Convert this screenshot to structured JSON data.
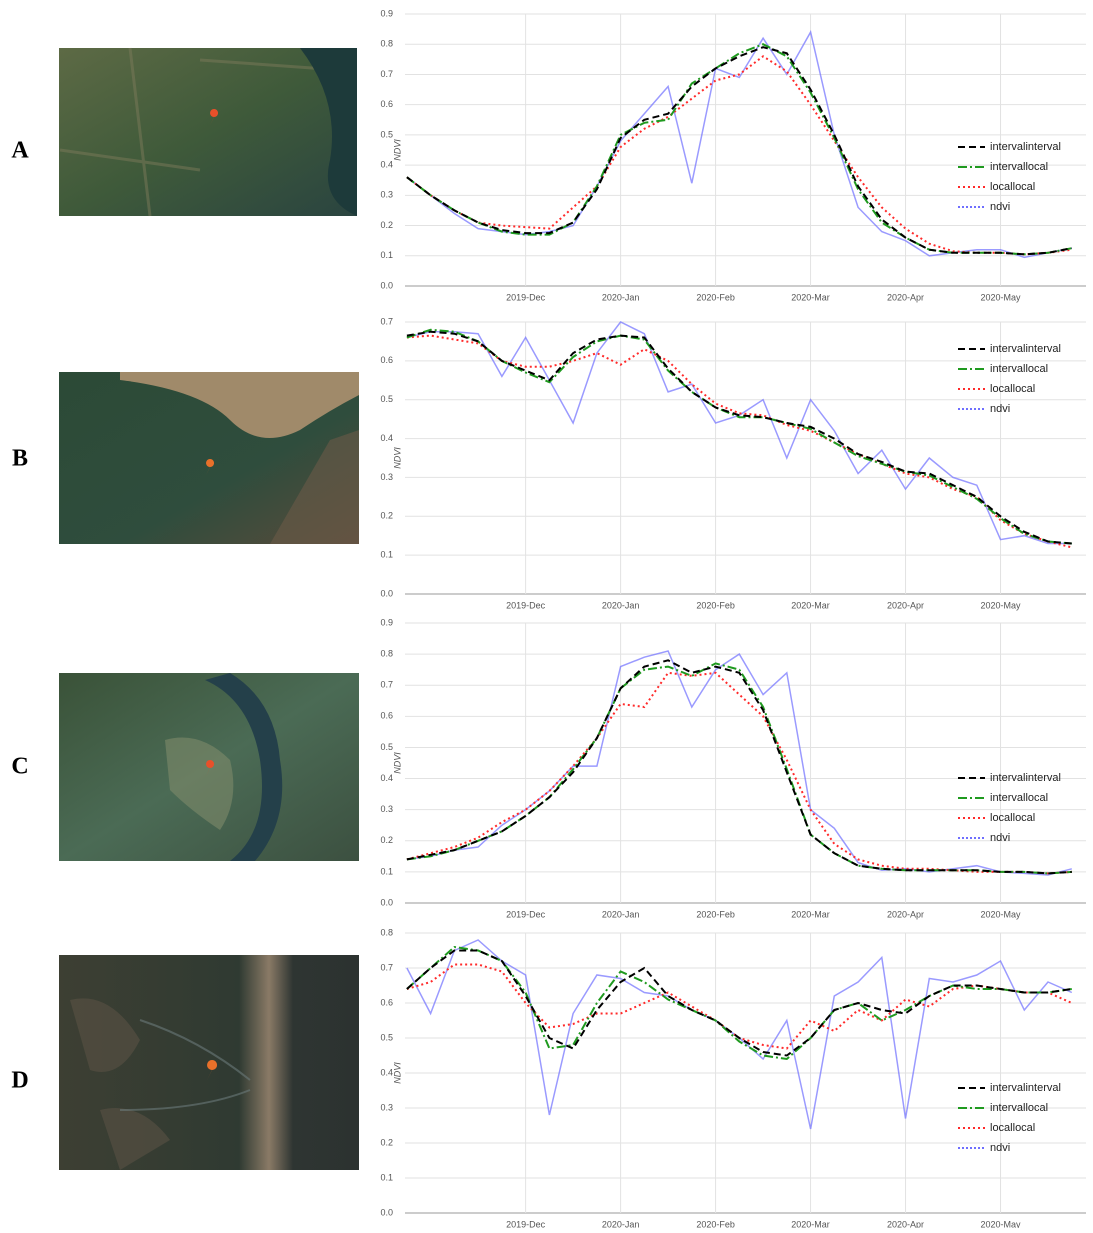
{
  "chart_data": [
    {
      "type": "line",
      "panel_label": "A",
      "y_label": "NDVI",
      "legend": "center right",
      "grid": true,
      "x": [
        -0.25,
        0,
        0.25,
        0.5,
        0.75,
        1,
        1.25,
        1.5,
        1.75,
        2,
        2.25,
        2.5,
        2.75,
        3,
        3.25,
        3.5,
        3.75,
        4,
        4.25,
        4.5,
        4.75,
        5,
        5.25,
        5.5,
        5.75,
        6,
        6.25,
        6.5,
        6.75
      ],
      "xlim": [
        -0.27,
        6.9
      ],
      "xticks": [
        {
          "value": 1,
          "label": "2019-Dec"
        },
        {
          "value": 2,
          "label": "2020-Jan"
        },
        {
          "value": 3,
          "label": "2020-Feb"
        },
        {
          "value": 4,
          "label": "2020-Mar"
        },
        {
          "value": 5,
          "label": "2020-Apr"
        },
        {
          "value": 6,
          "label": "2020-May"
        }
      ],
      "ylim": [
        0,
        0.9
      ],
      "yticks": [
        {
          "value": 0,
          "label": "0.0"
        },
        0.1,
        0.2,
        0.3,
        0.4,
        0.5,
        0.6,
        0.7,
        0.8,
        0.9
      ],
      "series": [
        {
          "name": "intervalinterval",
          "color": "#000000",
          "style": "dashed",
          "values": [
            0.36,
            0.3,
            0.25,
            0.21,
            0.185,
            0.175,
            0.175,
            0.21,
            0.32,
            0.49,
            0.55,
            0.57,
            0.66,
            0.72,
            0.76,
            0.79,
            0.77,
            0.65,
            0.5,
            0.33,
            0.22,
            0.16,
            0.12,
            0.11,
            0.11,
            0.11,
            0.105,
            0.11,
            0.125
          ]
        },
        {
          "name": "intervallocal",
          "color": "#1f9a1f",
          "style": "dashdot",
          "values": [
            0.36,
            0.3,
            0.25,
            0.21,
            0.18,
            0.17,
            0.17,
            0.21,
            0.33,
            0.5,
            0.54,
            0.55,
            0.67,
            0.72,
            0.77,
            0.8,
            0.76,
            0.64,
            0.49,
            0.32,
            0.21,
            0.16,
            0.12,
            0.11,
            0.11,
            0.11,
            0.105,
            0.11,
            0.125
          ]
        },
        {
          "name": "locallocal",
          "color": "#ff2a2a",
          "style": "dotted",
          "values": [
            0.36,
            0.3,
            0.25,
            0.21,
            0.2,
            0.195,
            0.19,
            0.26,
            0.33,
            0.46,
            0.52,
            0.56,
            0.62,
            0.68,
            0.7,
            0.76,
            0.71,
            0.6,
            0.48,
            0.36,
            0.26,
            0.19,
            0.14,
            0.115,
            0.11,
            0.11,
            0.105,
            0.11,
            0.12
          ]
        },
        {
          "name": "ndvi",
          "color": "#6f6fff",
          "style": "solid",
          "values": [
            0.36,
            0.3,
            0.24,
            0.19,
            0.18,
            0.17,
            0.18,
            0.2,
            0.33,
            0.48,
            0.57,
            0.66,
            0.34,
            0.72,
            0.69,
            0.82,
            0.7,
            0.84,
            0.5,
            0.26,
            0.18,
            0.15,
            0.1,
            0.11,
            0.12,
            0.12,
            0.095,
            0.11,
            0.125
          ]
        }
      ]
    },
    {
      "type": "line",
      "panel_label": "B",
      "y_label": "NDVI",
      "legend": "upper right",
      "grid": true,
      "x": [
        -0.25,
        0,
        0.25,
        0.5,
        0.75,
        1,
        1.25,
        1.5,
        1.75,
        2,
        2.25,
        2.5,
        2.75,
        3,
        3.25,
        3.5,
        3.75,
        4,
        4.25,
        4.5,
        4.75,
        5,
        5.25,
        5.5,
        5.75,
        6,
        6.25,
        6.5,
        6.75
      ],
      "xlim": [
        -0.27,
        6.9
      ],
      "xticks": [
        {
          "value": 1,
          "label": "2019-Dec"
        },
        {
          "value": 2,
          "label": "2020-Jan"
        },
        {
          "value": 3,
          "label": "2020-Feb"
        },
        {
          "value": 4,
          "label": "2020-Mar"
        },
        {
          "value": 5,
          "label": "2020-Apr"
        },
        {
          "value": 6,
          "label": "2020-May"
        }
      ],
      "ylim": [
        0,
        0.7
      ],
      "yticks": [
        {
          "value": 0,
          "label": "0.0"
        },
        0.1,
        0.2,
        0.3,
        0.4,
        0.5,
        0.6,
        0.7
      ],
      "series": [
        {
          "name": "intervalinterval",
          "color": "#000000",
          "style": "dashed",
          "values": [
            0.665,
            0.675,
            0.67,
            0.65,
            0.6,
            0.575,
            0.55,
            0.62,
            0.655,
            0.665,
            0.66,
            0.58,
            0.52,
            0.48,
            0.46,
            0.455,
            0.44,
            0.43,
            0.4,
            0.36,
            0.34,
            0.315,
            0.31,
            0.28,
            0.25,
            0.2,
            0.16,
            0.135,
            0.13
          ]
        },
        {
          "name": "intervallocal",
          "color": "#1f9a1f",
          "style": "dashdot",
          "values": [
            0.66,
            0.68,
            0.675,
            0.65,
            0.6,
            0.57,
            0.545,
            0.61,
            0.65,
            0.665,
            0.655,
            0.575,
            0.52,
            0.48,
            0.455,
            0.455,
            0.44,
            0.425,
            0.39,
            0.355,
            0.335,
            0.315,
            0.305,
            0.275,
            0.245,
            0.195,
            0.155,
            0.135,
            0.13
          ]
        },
        {
          "name": "locallocal",
          "color": "#ff2a2a",
          "style": "dotted",
          "values": [
            0.66,
            0.665,
            0.655,
            0.645,
            0.6,
            0.585,
            0.585,
            0.6,
            0.62,
            0.59,
            0.63,
            0.6,
            0.54,
            0.49,
            0.465,
            0.46,
            0.435,
            0.42,
            0.39,
            0.36,
            0.335,
            0.31,
            0.3,
            0.27,
            0.25,
            0.19,
            0.155,
            0.135,
            0.12
          ]
        },
        {
          "name": "ndvi",
          "color": "#6f6fff",
          "style": "solid",
          "values": [
            0.66,
            0.675,
            0.675,
            0.67,
            0.56,
            0.66,
            0.55,
            0.44,
            0.62,
            0.7,
            0.67,
            0.52,
            0.54,
            0.44,
            0.46,
            0.5,
            0.35,
            0.5,
            0.42,
            0.31,
            0.37,
            0.27,
            0.35,
            0.3,
            0.28,
            0.14,
            0.15,
            0.13,
            0.13
          ]
        }
      ]
    },
    {
      "type": "line",
      "panel_label": "C",
      "y_label": "NDVI",
      "legend": "lower right",
      "grid": true,
      "x": [
        -0.25,
        0,
        0.25,
        0.5,
        0.75,
        1,
        1.25,
        1.5,
        1.75,
        2,
        2.25,
        2.5,
        2.75,
        3,
        3.25,
        3.5,
        3.75,
        4,
        4.25,
        4.5,
        4.75,
        5,
        5.25,
        5.5,
        5.75,
        6,
        6.25,
        6.5,
        6.75
      ],
      "xlim": [
        -0.27,
        6.9
      ],
      "xticks": [
        {
          "value": 1,
          "label": "2019-Dec"
        },
        {
          "value": 2,
          "label": "2020-Jan"
        },
        {
          "value": 3,
          "label": "2020-Feb"
        },
        {
          "value": 4,
          "label": "2020-Mar"
        },
        {
          "value": 5,
          "label": "2020-Apr"
        },
        {
          "value": 6,
          "label": "2020-May"
        }
      ],
      "ylim": [
        0,
        0.9
      ],
      "yticks": [
        {
          "value": 0,
          "label": "0.0"
        },
        0.1,
        0.2,
        0.3,
        0.4,
        0.5,
        0.6,
        0.7,
        0.8,
        0.9
      ],
      "series": [
        {
          "name": "intervalinterval",
          "color": "#000000",
          "style": "dashed",
          "values": [
            0.14,
            0.155,
            0.17,
            0.2,
            0.23,
            0.28,
            0.34,
            0.42,
            0.53,
            0.69,
            0.76,
            0.78,
            0.74,
            0.76,
            0.74,
            0.62,
            0.42,
            0.22,
            0.16,
            0.12,
            0.11,
            0.105,
            0.105,
            0.105,
            0.105,
            0.1,
            0.1,
            0.095,
            0.1
          ]
        },
        {
          "name": "intervallocal",
          "color": "#1f9a1f",
          "style": "dashdot",
          "values": [
            0.14,
            0.15,
            0.17,
            0.2,
            0.23,
            0.28,
            0.34,
            0.43,
            0.53,
            0.69,
            0.75,
            0.76,
            0.73,
            0.77,
            0.75,
            0.63,
            0.43,
            0.22,
            0.16,
            0.12,
            0.11,
            0.105,
            0.105,
            0.105,
            0.105,
            0.1,
            0.1,
            0.095,
            0.1
          ]
        },
        {
          "name": "locallocal",
          "color": "#ff2a2a",
          "style": "dotted",
          "values": [
            0.14,
            0.16,
            0.18,
            0.21,
            0.26,
            0.3,
            0.36,
            0.44,
            0.53,
            0.64,
            0.63,
            0.74,
            0.73,
            0.74,
            0.67,
            0.6,
            0.46,
            0.3,
            0.19,
            0.14,
            0.12,
            0.11,
            0.11,
            0.105,
            0.1,
            0.1,
            0.1,
            0.095,
            0.1
          ]
        },
        {
          "name": "ndvi",
          "color": "#6f6fff",
          "style": "solid",
          "values": [
            0.14,
            0.15,
            0.17,
            0.18,
            0.25,
            0.3,
            0.36,
            0.44,
            0.44,
            0.76,
            0.79,
            0.81,
            0.63,
            0.75,
            0.8,
            0.67,
            0.74,
            0.3,
            0.24,
            0.13,
            0.105,
            0.11,
            0.1,
            0.11,
            0.12,
            0.1,
            0.095,
            0.09,
            0.11
          ]
        }
      ]
    },
    {
      "type": "line",
      "panel_label": "D",
      "y_label": "NDVI",
      "legend": "lower right",
      "grid": true,
      "x": [
        -0.25,
        0,
        0.25,
        0.5,
        0.75,
        1,
        1.25,
        1.5,
        1.75,
        2,
        2.25,
        2.5,
        2.75,
        3,
        3.25,
        3.5,
        3.75,
        4,
        4.25,
        4.5,
        4.75,
        5,
        5.25,
        5.5,
        5.75,
        6,
        6.25,
        6.5,
        6.75
      ],
      "xlim": [
        -0.27,
        6.9
      ],
      "xticks": [
        {
          "value": 1,
          "label": "2019-Dec"
        },
        {
          "value": 2,
          "label": "2020-Jan"
        },
        {
          "value": 3,
          "label": "2020-Feb"
        },
        {
          "value": 4,
          "label": "2020-Mar"
        },
        {
          "value": 5,
          "label": "2020-Apr"
        },
        {
          "value": 6,
          "label": "2020-May"
        }
      ],
      "ylim": [
        0,
        0.8
      ],
      "yticks": [
        {
          "value": 0,
          "label": "0.0"
        },
        0.1,
        0.2,
        0.3,
        0.4,
        0.5,
        0.6,
        0.7,
        0.8
      ],
      "series": [
        {
          "name": "intervalinterval",
          "color": "#000000",
          "style": "dashed",
          "values": [
            0.64,
            0.7,
            0.75,
            0.75,
            0.72,
            0.62,
            0.5,
            0.47,
            0.58,
            0.66,
            0.7,
            0.62,
            0.58,
            0.55,
            0.5,
            0.46,
            0.45,
            0.5,
            0.58,
            0.6,
            0.58,
            0.57,
            0.62,
            0.65,
            0.65,
            0.64,
            0.63,
            0.63,
            0.64
          ]
        },
        {
          "name": "intervallocal",
          "color": "#1f9a1f",
          "style": "dashdot",
          "values": [
            0.64,
            0.7,
            0.76,
            0.75,
            0.72,
            0.63,
            0.47,
            0.48,
            0.6,
            0.69,
            0.66,
            0.61,
            0.58,
            0.55,
            0.49,
            0.45,
            0.44,
            0.5,
            0.58,
            0.6,
            0.55,
            0.58,
            0.62,
            0.65,
            0.64,
            0.64,
            0.63,
            0.63,
            0.64
          ]
        },
        {
          "name": "locallocal",
          "color": "#ff2a2a",
          "style": "dotted",
          "values": [
            0.64,
            0.66,
            0.71,
            0.71,
            0.69,
            0.6,
            0.53,
            0.54,
            0.57,
            0.57,
            0.6,
            0.63,
            0.59,
            0.55,
            0.5,
            0.48,
            0.47,
            0.55,
            0.52,
            0.58,
            0.55,
            0.61,
            0.59,
            0.64,
            0.65,
            0.64,
            0.63,
            0.63,
            0.6
          ]
        },
        {
          "name": "ndvi",
          "color": "#6f6fff",
          "style": "solid",
          "values": [
            0.7,
            0.57,
            0.75,
            0.78,
            0.72,
            0.68,
            0.28,
            0.57,
            0.68,
            0.67,
            0.63,
            0.62,
            0.58,
            0.55,
            0.5,
            0.44,
            0.55,
            0.24,
            0.62,
            0.66,
            0.73,
            0.27,
            0.67,
            0.66,
            0.68,
            0.72,
            0.58,
            0.66,
            0.63
          ]
        }
      ]
    }
  ]
}
